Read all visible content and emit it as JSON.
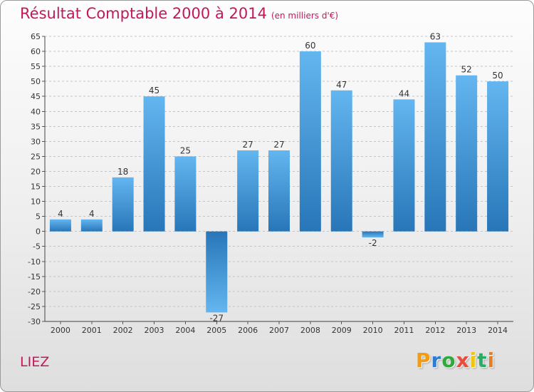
{
  "title": "Résultat Comptable 2000 à 2014",
  "title_unit": "(en milliers d'€)",
  "town": "LIEZ",
  "logo": {
    "letters": [
      "P",
      "r",
      "o",
      "x",
      "i",
      "t",
      "i"
    ]
  },
  "colors": {
    "title": "#c2185b",
    "bar_light": "#63b6f0",
    "bar_dark": "#2876b8",
    "grid": "#c4c4c4",
    "logo": [
      "#f39c12",
      "#2e7bcf",
      "#2eaa3b",
      "#e74c3c",
      "#f1c40f",
      "#27ae60",
      "#e67e22"
    ]
  },
  "chart_data": {
    "type": "bar",
    "title": "Résultat Comptable 2000 à 2014",
    "xlabel": "",
    "ylabel": "",
    "ylim": [
      -30,
      65
    ],
    "yticks": [
      65,
      60,
      55,
      50,
      45,
      40,
      35,
      30,
      25,
      20,
      15,
      10,
      5,
      0,
      -5,
      -10,
      -15,
      -20,
      -25,
      -30
    ],
    "categories": [
      "2000",
      "2001",
      "2002",
      "2003",
      "2004",
      "2005",
      "2006",
      "2007",
      "2008",
      "2009",
      "2010",
      "2011",
      "2012",
      "2013",
      "2014"
    ],
    "values": [
      4,
      4,
      18,
      45,
      25,
      -27,
      27,
      27,
      60,
      47,
      -2,
      44,
      63,
      52,
      50
    ],
    "grid": "horizontal dashed",
    "legend": "none"
  }
}
